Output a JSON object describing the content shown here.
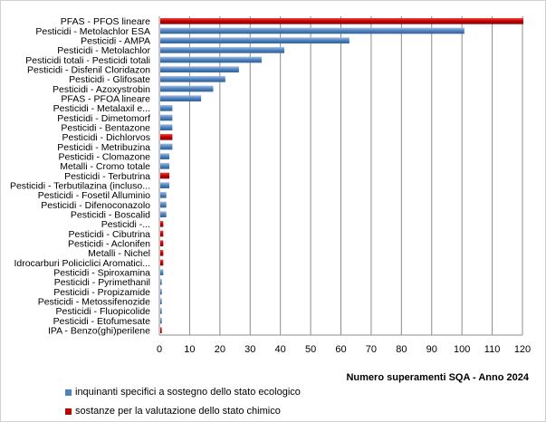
{
  "chart_data": {
    "type": "bar",
    "orientation": "horizontal",
    "xlabel": "Numero superamenti SQA - Anno 2024",
    "xlim": [
      0,
      120
    ],
    "xticks": [
      0,
      10,
      20,
      30,
      40,
      50,
      60,
      70,
      80,
      90,
      100,
      110,
      120
    ],
    "grid": true,
    "colors": {
      "blue": "#4f81bd",
      "red": "#c00000"
    },
    "categories": [
      "PFAS - PFOS lineare",
      "Pesticidi - Metolachlor ESA",
      "Pesticidi - AMPA",
      "Pesticidi - Metolachlor",
      "Pesticidi totali - Pesticidi totali",
      "Pesticidi - Disfenil Cloridazon",
      "Pesticidi - Glifosate",
      "Pesticidi - Azoxystrobin",
      "PFAS - PFOA lineare",
      "Pesticidi - Metalaxil e...",
      "Pesticidi - Dimetomorf",
      "Pesticidi - Bentazone",
      "Pesticidi - Dichlorvos",
      "Pesticidi - Metribuzina",
      "Pesticidi - Clomazone",
      "Metalli - Cromo totale",
      "Pesticidi - Terbutrina",
      "Pesticidi - Terbutilazina (incluso...",
      "Pesticidi - Fosetil Alluminio",
      "Pesticidi - Difenoconazolo",
      "Pesticidi - Boscalid",
      "Pesticidi -...",
      "Pesticidi - Cibutrina",
      "Pesticidi - Aclonifen",
      "Metalli - Nichel",
      "Idrocarburi Policiclici Aromatici...",
      "Pesticidi - Spiroxamina",
      "Pesticidi - Pyrimethanil",
      "Pesticidi - Propizamide",
      "Pesticidi - Metossifenozide",
      "Pesticidi - Fluopicolide",
      "Pesticidi - Etofumesate",
      "IPA - Benzo(ghi)perilene"
    ],
    "values": [
      120,
      100.5,
      62.5,
      41,
      33.5,
      26,
      21.5,
      17.5,
      13.5,
      4,
      4,
      4,
      4,
      4,
      3,
      3,
      3,
      3,
      2,
      2,
      2,
      1,
      1,
      1,
      1,
      1,
      1,
      0.5,
      0.5,
      0.5,
      0.5,
      0.5,
      0.5
    ],
    "series_index": [
      "red",
      "blue",
      "blue",
      "blue",
      "blue",
      "blue",
      "blue",
      "blue",
      "blue",
      "blue",
      "blue",
      "blue",
      "red",
      "blue",
      "blue",
      "blue",
      "red",
      "blue",
      "blue",
      "blue",
      "blue",
      "red",
      "red",
      "red",
      "red",
      "red",
      "blue",
      "blue",
      "blue",
      "blue",
      "blue",
      "blue",
      "red"
    ],
    "legend": [
      {
        "label": "inquinanti specifici a sostegno dello stato ecologico",
        "color": "#4f81bd"
      },
      {
        "label": "sostanze per la valutazione dello stato chimico",
        "color": "#c00000"
      }
    ]
  }
}
